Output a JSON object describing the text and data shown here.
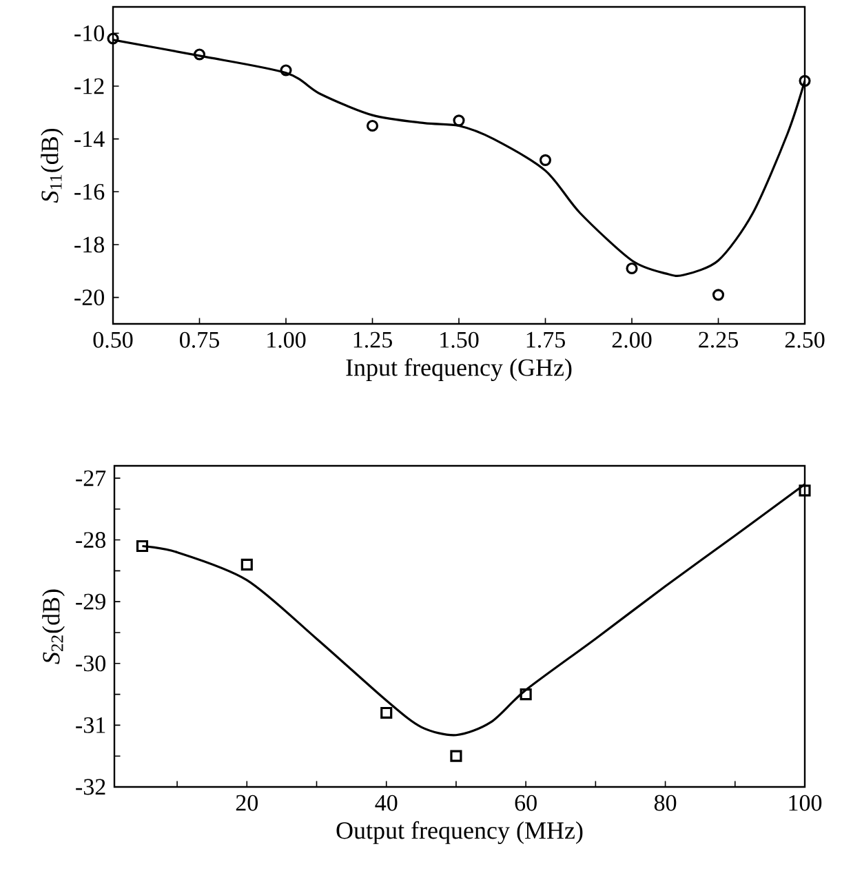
{
  "chart_data": [
    {
      "type": "scatter",
      "xlabel": "Input frequency (GHz)",
      "ylabel": "*S*$_{11}$(dB)",
      "xlim": [
        0.5,
        2.5
      ],
      "ylim": [
        -21,
        -9
      ],
      "xticks": [
        {
          "value": 0.5,
          "label": "0.50"
        },
        {
          "value": 0.75,
          "label": "0.75"
        },
        {
          "value": 1.0,
          "label": "1.00"
        },
        {
          "value": 1.25,
          "label": "1.25"
        },
        {
          "value": 1.5,
          "label": "1.50"
        },
        {
          "value": 1.75,
          "label": "1.75"
        },
        {
          "value": 2.0,
          "label": "2.00"
        },
        {
          "value": 2.25,
          "label": "2.25"
        },
        {
          "value": 2.5,
          "label": "2.50"
        }
      ],
      "yticks": [
        -20,
        -18,
        -16,
        -14,
        -12,
        -10
      ],
      "grid": false,
      "series": [
        {
          "marker": "circle",
          "color": "#000000",
          "x": [
            0.5,
            0.75,
            1.0,
            1.25,
            1.5,
            1.75,
            2.0,
            2.25,
            2.5
          ],
          "values": [
            -10.2,
            -10.8,
            -11.4,
            -13.5,
            -13.3,
            -14.8,
            -18.9,
            -19.9,
            -11.8
          ]
        },
        {
          "type": "line",
          "marker": "none",
          "line_style": "solid",
          "color": "#000000",
          "x": [
            0.5,
            0.75,
            1.0,
            1.1,
            1.25,
            1.4,
            1.5,
            1.6,
            1.75,
            1.85,
            2.0,
            2.1,
            2.15,
            2.25,
            2.35,
            2.45,
            2.5
          ],
          "values": [
            -10.25,
            -10.85,
            -11.5,
            -12.3,
            -13.1,
            -13.4,
            -13.5,
            -14.0,
            -15.2,
            -16.8,
            -18.6,
            -19.1,
            -19.15,
            -18.6,
            -16.8,
            -13.8,
            -11.8
          ]
        }
      ]
    },
    {
      "type": "scatter",
      "xlabel": "Output frequency (MHz)",
      "ylabel": "*S*$_{22}$(dB)",
      "xlim": [
        1,
        100
      ],
      "ylim": [
        -32,
        -26.8
      ],
      "xticks": [
        {
          "value": 10,
          "label": null
        },
        20,
        {
          "value": 30,
          "label": null
        },
        40,
        {
          "value": 50,
          "label": null
        },
        60,
        {
          "value": 70,
          "label": null
        },
        80,
        {
          "value": 90,
          "label": null
        },
        100
      ],
      "yticks": [
        -32,
        {
          "value": -31.5,
          "label": null
        },
        -31,
        {
          "value": -30.5,
          "label": null
        },
        -30,
        {
          "value": -29.5,
          "label": null
        },
        -29,
        {
          "value": -28.5,
          "label": null
        },
        -28,
        {
          "value": -27.5,
          "label": null
        },
        -27
      ],
      "grid": false,
      "series": [
        {
          "marker": "square",
          "color": "#000000",
          "x": [
            5,
            20,
            40,
            50,
            60,
            100
          ],
          "values": [
            -28.1,
            -28.4,
            -30.8,
            -31.5,
            -30.5,
            -27.2
          ]
        },
        {
          "type": "line",
          "marker": "none",
          "line_style": "solid",
          "color": "#000000",
          "x": [
            5,
            10,
            20,
            30,
            40,
            45,
            50,
            55,
            60,
            70,
            80,
            90,
            100
          ],
          "values": [
            -28.1,
            -28.2,
            -28.65,
            -29.6,
            -30.6,
            -31.03,
            -31.16,
            -30.95,
            -30.43,
            -29.6,
            -28.75,
            -27.93,
            -27.1
          ]
        }
      ]
    }
  ]
}
